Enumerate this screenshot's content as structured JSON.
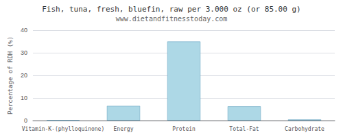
{
  "chart_data": {
    "type": "bar",
    "title": "Fish, tuna, fresh, bluefin, raw per 3.000 oz (or 85.00 g)",
    "subtitle": "www.dietandfitnesstoday.com",
    "categories": [
      "Vitamin-K-(phylloquinone)",
      "Energy",
      "Protein",
      "Total-Fat",
      "Carbohydrate"
    ],
    "values": [
      0.2,
      6.5,
      35.0,
      6.3,
      0.5
    ],
    "color": "#add8e6",
    "ylabel": "Percentage of RDH (%)",
    "ylim": [
      0,
      40
    ],
    "yticks": [
      0,
      10,
      20,
      30,
      40
    ],
    "grid": true
  }
}
